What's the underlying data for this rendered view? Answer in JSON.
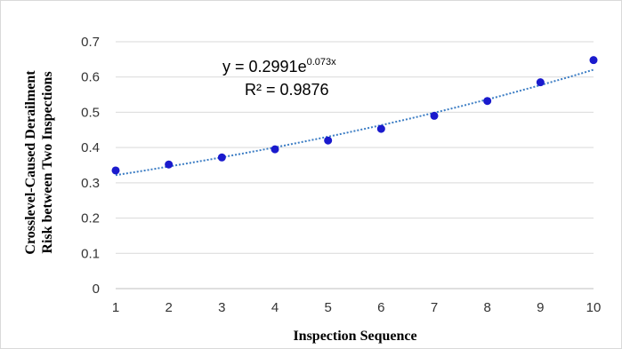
{
  "chart_data": {
    "type": "scatter",
    "xlabel": "Inspection Sequence",
    "ylabel": [
      "Crosslevel-Caused Derailment",
      "Risk between Two Inspections"
    ],
    "xlim": [
      1,
      10
    ],
    "ylim": [
      0,
      0.7
    ],
    "xticks": [
      "1",
      "2",
      "3",
      "4",
      "5",
      "6",
      "7",
      "8",
      "9",
      "10"
    ],
    "yticks": [
      "0",
      "0.1",
      "0.2",
      "0.3",
      "0.4",
      "0.5",
      "0.6",
      "0.7"
    ],
    "grid": true,
    "legend": "none",
    "series": [
      {
        "x": [
          1,
          2,
          3,
          4,
          5,
          6,
          7,
          8,
          9,
          10
        ],
        "y": [
          0.335,
          0.352,
          0.372,
          0.395,
          0.42,
          0.453,
          0.49,
          0.532,
          0.585,
          0.648
        ],
        "color": "#1a1acd"
      }
    ],
    "trendline": {
      "type": "exponential",
      "a": 0.2991,
      "b": 0.073,
      "color": "#3c7dc4",
      "equation_base": "y = 0.2991e",
      "equation_exponent": "0.073x",
      "r_squared_text": "R² = 0.9876"
    }
  }
}
